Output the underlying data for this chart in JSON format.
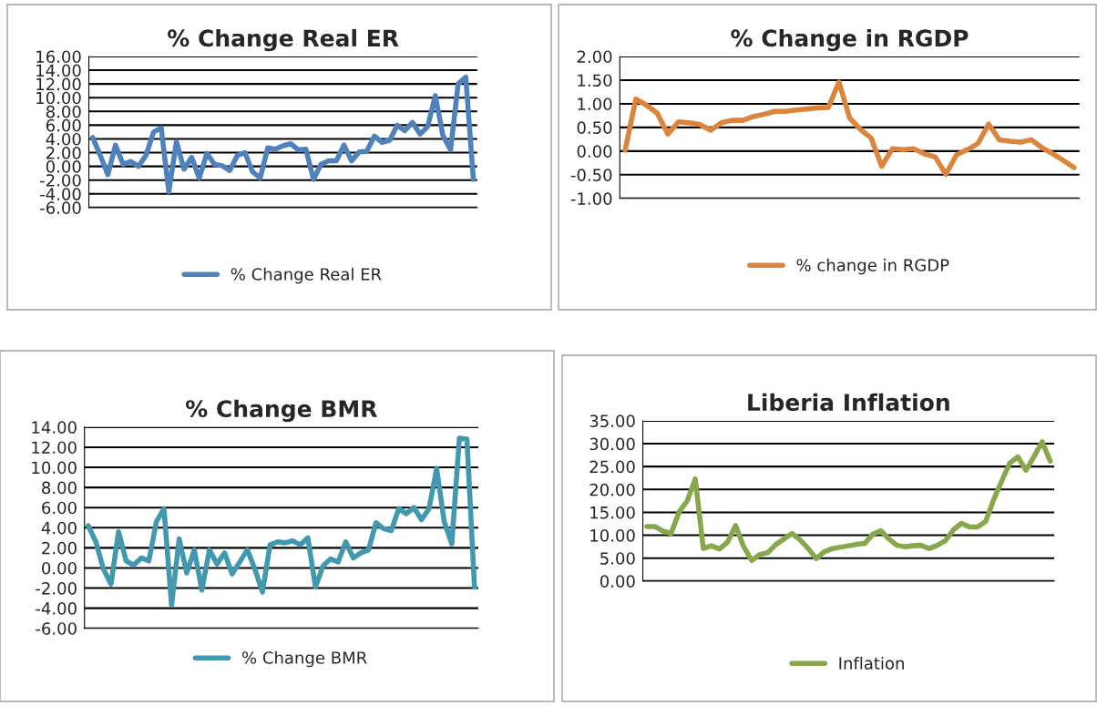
{
  "chart_data": [
    {
      "type": "line",
      "title": "% Change Real ER",
      "categories": [
        null,
        null,
        null,
        null,
        null,
        null,
        null,
        null,
        null,
        null,
        null,
        null,
        null,
        null,
        null,
        null,
        null,
        null,
        null,
        null,
        null,
        null,
        null,
        null,
        null,
        null,
        null,
        null,
        null,
        null,
        null,
        null,
        null,
        null,
        null,
        null,
        null,
        null,
        null,
        null,
        null,
        null,
        null,
        null,
        null,
        null,
        null,
        null,
        null,
        null,
        null
      ],
      "series": [
        {
          "name": "% Change Real ER",
          "color": "#4f81bd",
          "values": [
            4.2,
            1.6,
            -1.2,
            3.1,
            0.3,
            0.7,
            0,
            1.6,
            5,
            5.6,
            -3.7,
            3.6,
            -0.4,
            1.3,
            -1.7,
            1.9,
            0.3,
            0.1,
            -0.6,
            1.6,
            2,
            -0.8,
            -1.7,
            2.7,
            2.5,
            3,
            3.3,
            2.4,
            2.5,
            -1.9,
            0.3,
            0.8,
            0.8,
            3.1,
            0.8,
            2.1,
            2.2,
            4.4,
            3.5,
            3.8,
            6,
            5.2,
            6.4,
            4.7,
            5.8,
            10.3,
            4.5,
            2.4,
            12,
            13,
            -1.9
          ]
        }
      ],
      "ylim": [
        -6,
        16
      ],
      "yticks": [
        {
          "value": -6,
          "label": "-6.00"
        },
        {
          "value": -4,
          "label": "-4.00"
        },
        {
          "value": -2,
          "label": "-2.00"
        },
        {
          "value": 0,
          "label": "0.00"
        },
        {
          "value": 2,
          "label": "2.00"
        },
        {
          "value": 4,
          "label": "4.00"
        },
        {
          "value": 6,
          "label": "6.00"
        },
        {
          "value": 8,
          "label": "8.00"
        },
        {
          "value": 10,
          "label": "10.00"
        },
        {
          "value": 12,
          "label": "12.00"
        },
        {
          "value": 14,
          "label": "14.00"
        },
        {
          "value": 16,
          "label": "16.00"
        }
      ],
      "grid": "y",
      "legend": "bottom",
      "marker": "none",
      "line_style": "solid"
    },
    {
      "type": "line",
      "title": "% Change in RGDP",
      "categories": [
        null,
        null,
        null,
        null,
        null,
        null,
        null,
        null,
        null,
        null,
        null,
        null,
        null,
        null,
        null,
        null,
        null,
        null,
        null,
        null,
        null,
        null,
        null,
        null,
        null,
        null,
        null,
        null,
        null,
        null,
        null,
        null,
        null,
        null,
        null,
        null,
        null,
        null,
        null,
        null,
        null,
        null,
        null
      ],
      "series": [
        {
          "name": "% change in RGDP",
          "color": "#dc843c",
          "values": [
            0.02,
            1.1,
            0.97,
            0.8,
            0.36,
            0.62,
            0.6,
            0.56,
            0.44,
            0.6,
            0.65,
            0.65,
            0.73,
            0.78,
            0.84,
            0.84,
            0.87,
            0.89,
            0.91,
            0.92,
            1.46,
            0.7,
            0.46,
            0.28,
            -0.32,
            0.05,
            0.03,
            0.05,
            -0.06,
            -0.12,
            -0.49,
            -0.08,
            0.03,
            0.16,
            0.57,
            0.24,
            0.21,
            0.19,
            0.24,
            0.07,
            -0.06,
            -0.2,
            -0.35
          ]
        }
      ],
      "ylim": [
        -1,
        2
      ],
      "yticks": [
        {
          "value": -1,
          "label": "-1.00"
        },
        {
          "value": -0.5,
          "label": "-0.50"
        },
        {
          "value": 0,
          "label": "0.00"
        },
        {
          "value": 0.5,
          "label": "0.50"
        },
        {
          "value": 1,
          "label": "1.00"
        },
        {
          "value": 1.5,
          "label": "1.50"
        },
        {
          "value": 2,
          "label": "2.00"
        }
      ],
      "grid": "y",
      "legend": "bottom",
      "marker": "none",
      "line_style": "solid"
    },
    {
      "type": "line",
      "title": "% Change BMR",
      "categories": [
        null,
        null,
        null,
        null,
        null,
        null,
        null,
        null,
        null,
        null,
        null,
        null,
        null,
        null,
        null,
        null,
        null,
        null,
        null,
        null,
        null,
        null,
        null,
        null,
        null,
        null,
        null,
        null,
        null,
        null,
        null,
        null,
        null,
        null,
        null,
        null,
        null,
        null,
        null,
        null,
        null,
        null,
        null,
        null,
        null,
        null,
        null,
        null,
        null,
        null,
        null,
        null
      ],
      "series": [
        {
          "name": "% Change BMR",
          "color": "#4198af",
          "values": [
            4.2,
            2.6,
            -0.1,
            -1.6,
            3.6,
            0.7,
            0.3,
            1.0,
            0.7,
            4.6,
            5.9,
            -3.7,
            2.9,
            -0.5,
            1.8,
            -2.2,
            1.8,
            0.4,
            1.5,
            -0.6,
            0.6,
            1.8,
            -0.1,
            -2.4,
            2.3,
            2.6,
            2.5,
            2.7,
            2.3,
            3.0,
            -1.9,
            0.2,
            0.9,
            0.6,
            2.6,
            1.0,
            1.5,
            1.8,
            4.5,
            3.9,
            3.7,
            5.9,
            5.4,
            6.0,
            4.8,
            5.9,
            9.9,
            4.6,
            2.4,
            12.9,
            12.8,
            -1.9
          ]
        }
      ],
      "ylim": [
        -6,
        14
      ],
      "yticks": [
        {
          "value": -6,
          "label": "-6.00"
        },
        {
          "value": -4,
          "label": "-4.00"
        },
        {
          "value": -2,
          "label": "-2.00"
        },
        {
          "value": 0,
          "label": "0.00"
        },
        {
          "value": 2,
          "label": "2.00"
        },
        {
          "value": 4,
          "label": "4.00"
        },
        {
          "value": 6,
          "label": "6.00"
        },
        {
          "value": 8,
          "label": "8.00"
        },
        {
          "value": 10,
          "label": "10.00"
        },
        {
          "value": 12,
          "label": "12.00"
        },
        {
          "value": 14,
          "label": "14.00"
        }
      ],
      "grid": "y",
      "legend": "bottom",
      "marker": "none",
      "line_style": "solid"
    },
    {
      "type": "line",
      "title": "Liberia Inflation",
      "categories": [
        null,
        null,
        null,
        null,
        null,
        null,
        null,
        null,
        null,
        null,
        null,
        null,
        null,
        null,
        null,
        null,
        null,
        null,
        null,
        null,
        null,
        null,
        null,
        null,
        null,
        null,
        null,
        null,
        null,
        null,
        null,
        null,
        null,
        null,
        null,
        null,
        null,
        null,
        null,
        null,
        null,
        null,
        null,
        null,
        null,
        null,
        null,
        null,
        null,
        null,
        null
      ],
      "series": [
        {
          "name": "Inflation",
          "color": "#86a84a",
          "values": [
            11.9,
            11.9,
            10.9,
            10.4,
            15.1,
            17.5,
            22.3,
            7.1,
            7.7,
            7.0,
            8.5,
            12.1,
            7.5,
            4.5,
            5.8,
            6.2,
            8.0,
            9.2,
            10.4,
            9.0,
            7.1,
            4.9,
            6.4,
            7.1,
            7.4,
            7.7,
            8.0,
            8.2,
            10.2,
            11.0,
            9.2,
            7.8,
            7.5,
            7.7,
            7.8,
            7.1,
            7.8,
            8.8,
            11.2,
            12.6,
            11.8,
            11.8,
            13.0,
            17.8,
            21.9,
            25.8,
            27.1,
            24.2,
            27.2,
            30.4,
            26.2
          ]
        }
      ],
      "ylim": [
        0,
        35
      ],
      "yticks": [
        {
          "value": 0,
          "label": "0.00"
        },
        {
          "value": 5,
          "label": "5.00"
        },
        {
          "value": 10,
          "label": "10.00"
        },
        {
          "value": 15,
          "label": "15.00"
        },
        {
          "value": 20,
          "label": "20.00"
        },
        {
          "value": 25,
          "label": "25.00"
        },
        {
          "value": 30,
          "label": "30.00"
        },
        {
          "value": 35,
          "label": "35.00"
        }
      ],
      "grid": "y",
      "legend": "bottom",
      "marker": "none",
      "line_style": "solid"
    }
  ]
}
